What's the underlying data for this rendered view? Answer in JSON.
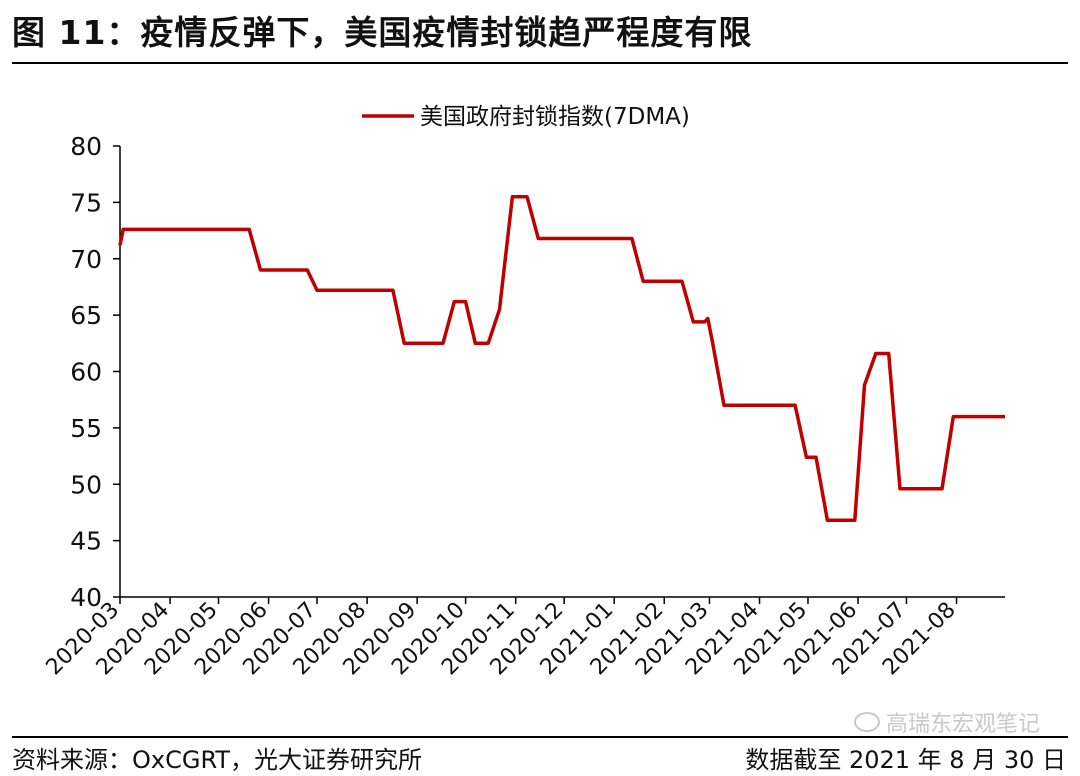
{
  "header": {
    "title": "图 11：疫情反弹下，美国疫情封锁趋严程度有限"
  },
  "footer": {
    "source": "资料来源：OxCGRT，光大证券研究所",
    "cutoff": "数据截至 2021 年 8 月 30 日"
  },
  "watermark": {
    "text": "高瑞东宏观笔记"
  },
  "colors": {
    "series": "#c00000",
    "axis": "#000000"
  },
  "chart_data": {
    "type": "line",
    "ylim": [
      40,
      80
    ],
    "yticks": [
      40,
      45,
      50,
      55,
      60,
      65,
      70,
      75,
      80
    ],
    "xlim": [
      "2020-03-01",
      "2021-08-31"
    ],
    "xticks": [
      "2020-03",
      "2020-04",
      "2020-05",
      "2020-06",
      "2020-07",
      "2020-08",
      "2020-09",
      "2020-10",
      "2020-11",
      "2020-12",
      "2021-01",
      "2021-02",
      "2021-03",
      "2021-04",
      "2021-05",
      "2021-06",
      "2021-07",
      "2021-08"
    ],
    "legend_position": "top-center",
    "series": [
      {
        "name": "美国政府封锁指数(7DMA)",
        "points": [
          [
            "2020-03-01",
            71.2
          ],
          [
            "2020-03-03",
            72.6
          ],
          [
            "2020-05-20",
            72.6
          ],
          [
            "2020-05-27",
            69.0
          ],
          [
            "2020-06-25",
            69.0
          ],
          [
            "2020-07-01",
            67.2
          ],
          [
            "2020-08-17",
            67.2
          ],
          [
            "2020-08-24",
            62.5
          ],
          [
            "2020-09-17",
            62.5
          ],
          [
            "2020-09-24",
            66.2
          ],
          [
            "2020-10-01",
            66.2
          ],
          [
            "2020-10-07",
            62.5
          ],
          [
            "2020-10-15",
            62.5
          ],
          [
            "2020-10-22",
            65.5
          ],
          [
            "2020-10-30",
            75.5
          ],
          [
            "2020-11-08",
            75.5
          ],
          [
            "2020-11-15",
            71.8
          ],
          [
            "2021-01-12",
            71.8
          ],
          [
            "2021-01-19",
            68.0
          ],
          [
            "2021-02-12",
            68.0
          ],
          [
            "2021-02-19",
            64.4
          ],
          [
            "2021-02-26",
            64.4
          ],
          [
            "2021-02-28",
            64.7
          ],
          [
            "2021-03-03",
            62.5
          ],
          [
            "2021-03-10",
            57.0
          ],
          [
            "2021-04-23",
            57.0
          ],
          [
            "2021-04-30",
            52.4
          ],
          [
            "2021-05-06",
            52.4
          ],
          [
            "2021-05-13",
            46.8
          ],
          [
            "2021-05-30",
            46.8
          ],
          [
            "2021-06-05",
            58.8
          ],
          [
            "2021-06-12",
            61.6
          ],
          [
            "2021-06-20",
            61.6
          ],
          [
            "2021-06-27",
            49.6
          ],
          [
            "2021-07-23",
            49.6
          ],
          [
            "2021-07-30",
            56.0
          ],
          [
            "2021-08-31",
            56.0
          ]
        ]
      }
    ]
  }
}
